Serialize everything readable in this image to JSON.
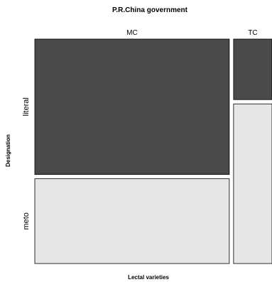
{
  "chart_data": {
    "type": "mosaic",
    "title": "P.R.China government",
    "xlabel": "Lectal varieties",
    "ylabel": "Designation",
    "columns": [
      {
        "name": "MC",
        "width_share": 0.835,
        "proportions": {
          "literal": 0.615,
          "meto": 0.385
        }
      },
      {
        "name": "TC",
        "width_share": 0.165,
        "proportions": {
          "literal": 0.275,
          "meto": 0.725
        }
      }
    ],
    "rows": [
      "literal",
      "meto"
    ],
    "colors": {
      "literal": "#4a4a4a",
      "meto": "#e6e6e6"
    }
  }
}
